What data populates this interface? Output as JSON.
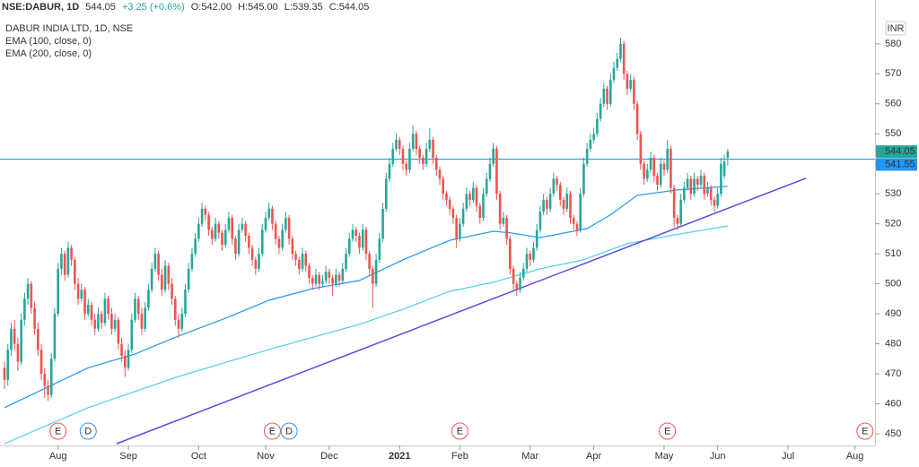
{
  "chart_data": {
    "type": "candlestick",
    "title": "DABUR INDIA LTD, 1D, NSE",
    "header": {
      "symbol": "NSE:DABUR, 1D",
      "price": "544.05",
      "change": "+3.25 (+0.6%)",
      "open": "O:542.00",
      "high": "H:545.00",
      "low": "L:539.35",
      "close": "C:544.05"
    },
    "currency": "INR",
    "xlim": [
      -1.34,
      260
    ],
    "ylim": [
      446.1,
      594.6
    ],
    "yticks": [
      450,
      460,
      470,
      480,
      490,
      500,
      510,
      520,
      530,
      540,
      550,
      560,
      570,
      580
    ],
    "xticks": [
      {
        "value": 16,
        "label": "Aug"
      },
      {
        "value": 37,
        "label": "Sep"
      },
      {
        "value": 58,
        "label": "Oct"
      },
      {
        "value": 78,
        "label": "Nov"
      },
      {
        "value": 97,
        "label": "Dec"
      },
      {
        "value": 118,
        "label": "2021"
      },
      {
        "value": 136,
        "label": "Feb"
      },
      {
        "value": 157,
        "label": "Mar"
      },
      {
        "value": 176,
        "label": "Apr"
      },
      {
        "value": 197,
        "label": "May"
      },
      {
        "value": 213,
        "label": "Jun"
      },
      {
        "value": 234,
        "label": "Jul"
      },
      {
        "value": 254,
        "label": "Aug"
      }
    ],
    "up_color": "#26a69a",
    "down_color": "#ef5350",
    "candles": [
      [
        472,
        474,
        465,
        468
      ],
      [
        468,
        480,
        466,
        478
      ],
      [
        478,
        487,
        476,
        485
      ],
      [
        485,
        488,
        478,
        480
      ],
      [
        480,
        482,
        471,
        474
      ],
      [
        474,
        490,
        473,
        488
      ],
      [
        488,
        497,
        486,
        495
      ],
      [
        495,
        502,
        493,
        500
      ],
      [
        500,
        501,
        490,
        492
      ],
      [
        492,
        494,
        483,
        485
      ],
      [
        485,
        487,
        476,
        478
      ],
      [
        478,
        480,
        468,
        470
      ],
      [
        470,
        472,
        462,
        466
      ],
      [
        466,
        468,
        461,
        463
      ],
      [
        463,
        477,
        462,
        475
      ],
      [
        475,
        492,
        474,
        490
      ],
      [
        490,
        507,
        489,
        505
      ],
      [
        505,
        512,
        503,
        510
      ],
      [
        510,
        511,
        501,
        503
      ],
      [
        503,
        514,
        502,
        512
      ],
      [
        512,
        513,
        506,
        508
      ],
      [
        508,
        509,
        498,
        500
      ],
      [
        500,
        502,
        493,
        495
      ],
      [
        495,
        500,
        494,
        498
      ],
      [
        498,
        499,
        488,
        490
      ],
      [
        490,
        495,
        489,
        493
      ],
      [
        493,
        494,
        486,
        488
      ],
      [
        488,
        490,
        483,
        485
      ],
      [
        485,
        492,
        484,
        490
      ],
      [
        490,
        491,
        485,
        487
      ],
      [
        487,
        497,
        486,
        495
      ],
      [
        495,
        496,
        488,
        490
      ],
      [
        490,
        492,
        483,
        485
      ],
      [
        485,
        490,
        484,
        488
      ],
      [
        488,
        489,
        478,
        480
      ],
      [
        480,
        482,
        474,
        476
      ],
      [
        476,
        478,
        469,
        472
      ],
      [
        472,
        480,
        471,
        478
      ],
      [
        478,
        490,
        477,
        488
      ],
      [
        488,
        497,
        487,
        495
      ],
      [
        495,
        496,
        488,
        490
      ],
      [
        490,
        492,
        483,
        485
      ],
      [
        485,
        494,
        484,
        492
      ],
      [
        492,
        500,
        491,
        498
      ],
      [
        498,
        507,
        497,
        505
      ],
      [
        505,
        512,
        504,
        510
      ],
      [
        510,
        511,
        501,
        503
      ],
      [
        503,
        505,
        496,
        498
      ],
      [
        498,
        508,
        497,
        506
      ],
      [
        506,
        507,
        498,
        500
      ],
      [
        500,
        502,
        493,
        495
      ],
      [
        495,
        496,
        486,
        488
      ],
      [
        488,
        490,
        482,
        485
      ],
      [
        485,
        492,
        484,
        490
      ],
      [
        490,
        500,
        489,
        498
      ],
      [
        498,
        507,
        497,
        505
      ],
      [
        505,
        512,
        504,
        510
      ],
      [
        510,
        517,
        509,
        515
      ],
      [
        515,
        522,
        514,
        520
      ],
      [
        520,
        527,
        519,
        525
      ],
      [
        525,
        526,
        521,
        523
      ],
      [
        523,
        524,
        516,
        518
      ],
      [
        518,
        519,
        513,
        515
      ],
      [
        515,
        522,
        514,
        520
      ],
      [
        520,
        521,
        515,
        517
      ],
      [
        517,
        518,
        511,
        513
      ],
      [
        513,
        520,
        512,
        518
      ],
      [
        518,
        524,
        517,
        522
      ],
      [
        522,
        523,
        513,
        515
      ],
      [
        515,
        516,
        508,
        510
      ],
      [
        510,
        520,
        509,
        518
      ],
      [
        518,
        522,
        517,
        520
      ],
      [
        520,
        521,
        514,
        516
      ],
      [
        516,
        517,
        510,
        512
      ],
      [
        512,
        513,
        506,
        508
      ],
      [
        508,
        509,
        503,
        505
      ],
      [
        505,
        512,
        504,
        510
      ],
      [
        510,
        520,
        509,
        518
      ],
      [
        518,
        524,
        517,
        522
      ],
      [
        522,
        527,
        521,
        525
      ],
      [
        525,
        526,
        518,
        520
      ],
      [
        520,
        521,
        513,
        515
      ],
      [
        515,
        516,
        510,
        512
      ],
      [
        512,
        520,
        511,
        518
      ],
      [
        518,
        524,
        517,
        522
      ],
      [
        522,
        523,
        513,
        515
      ],
      [
        515,
        516,
        508,
        510
      ],
      [
        510,
        511,
        506,
        508
      ],
      [
        508,
        509,
        503,
        505
      ],
      [
        505,
        512,
        504,
        510
      ],
      [
        510,
        511,
        504,
        506
      ],
      [
        506,
        507,
        500,
        502
      ],
      [
        502,
        503,
        498,
        500
      ],
      [
        500,
        505,
        499,
        503
      ],
      [
        503,
        504,
        498,
        500
      ],
      [
        500,
        503,
        499,
        501
      ],
      [
        501,
        506,
        500,
        504
      ],
      [
        504,
        505,
        500,
        502
      ],
      [
        502,
        503,
        496,
        500
      ],
      [
        500,
        505,
        499,
        503
      ],
      [
        503,
        504,
        499,
        501
      ],
      [
        501,
        507,
        500,
        505
      ],
      [
        505,
        512,
        504,
        510
      ],
      [
        510,
        517,
        509,
        515
      ],
      [
        515,
        520,
        514,
        518
      ],
      [
        518,
        519,
        514,
        516
      ],
      [
        516,
        517,
        510,
        512
      ],
      [
        512,
        520,
        511,
        518
      ],
      [
        518,
        519,
        508,
        510
      ],
      [
        510,
        511,
        503,
        505
      ],
      [
        505,
        506,
        492,
        500
      ],
      [
        500,
        510,
        499,
        508
      ],
      [
        508,
        517,
        507,
        515
      ],
      [
        515,
        527,
        514,
        525
      ],
      [
        525,
        537,
        524,
        535
      ],
      [
        535,
        542,
        534,
        540
      ],
      [
        540,
        547,
        539,
        545
      ],
      [
        545,
        550,
        544,
        548
      ],
      [
        548,
        549,
        543,
        545
      ],
      [
        545,
        546,
        538,
        540
      ],
      [
        540,
        541,
        536,
        538
      ],
      [
        538,
        547,
        537,
        545
      ],
      [
        545,
        553,
        544,
        550
      ],
      [
        550,
        551,
        543,
        545
      ],
      [
        545,
        546,
        540,
        542
      ],
      [
        542,
        543,
        538,
        540
      ],
      [
        540,
        547,
        539,
        545
      ],
      [
        545,
        552,
        544,
        548
      ],
      [
        548,
        549,
        540,
        542
      ],
      [
        542,
        543,
        536,
        538
      ],
      [
        538,
        539,
        533,
        535
      ],
      [
        535,
        536,
        528,
        530
      ],
      [
        530,
        531,
        526,
        528
      ],
      [
        528,
        529,
        523,
        525
      ],
      [
        525,
        526,
        520,
        522
      ],
      [
        522,
        523,
        512,
        515
      ],
      [
        515,
        522,
        514,
        520
      ],
      [
        520,
        527,
        519,
        525
      ],
      [
        525,
        532,
        524,
        530
      ],
      [
        530,
        531,
        526,
        528
      ],
      [
        528,
        534,
        527,
        532
      ],
      [
        532,
        533,
        524,
        526
      ],
      [
        526,
        527,
        520,
        522
      ],
      [
        522,
        532,
        521,
        530
      ],
      [
        530,
        537,
        529,
        535
      ],
      [
        535,
        542,
        534,
        540
      ],
      [
        540,
        547,
        539,
        545
      ],
      [
        545,
        546,
        528,
        530
      ],
      [
        530,
        531,
        518,
        520
      ],
      [
        520,
        524,
        519,
        522
      ],
      [
        522,
        523,
        513,
        515
      ],
      [
        515,
        516,
        503,
        505
      ],
      [
        505,
        506,
        498,
        500
      ],
      [
        500,
        501,
        496,
        498
      ],
      [
        498,
        504,
        497,
        502
      ],
      [
        502,
        507,
        501,
        505
      ],
      [
        505,
        512,
        504,
        510
      ],
      [
        510,
        511,
        506,
        508
      ],
      [
        508,
        514,
        507,
        512
      ],
      [
        512,
        520,
        511,
        518
      ],
      [
        518,
        526,
        517,
        524
      ],
      [
        524,
        530,
        523,
        528
      ],
      [
        528,
        529,
        523,
        525
      ],
      [
        525,
        532,
        524,
        530
      ],
      [
        530,
        537,
        529,
        535
      ],
      [
        535,
        536,
        531,
        533
      ],
      [
        533,
        534,
        526,
        528
      ],
      [
        528,
        529,
        523,
        525
      ],
      [
        525,
        532,
        524,
        530
      ],
      [
        530,
        531,
        520,
        522
      ],
      [
        522,
        523,
        518,
        520
      ],
      [
        520,
        521,
        516,
        518
      ],
      [
        518,
        532,
        517,
        530
      ],
      [
        530,
        542,
        529,
        540
      ],
      [
        540,
        547,
        539,
        545
      ],
      [
        545,
        550,
        544,
        548
      ],
      [
        548,
        552,
        547,
        550
      ],
      [
        550,
        557,
        549,
        555
      ],
      [
        555,
        562,
        554,
        560
      ],
      [
        560,
        567,
        559,
        565
      ],
      [
        565,
        566,
        558,
        560
      ],
      [
        560,
        570,
        559,
        568
      ],
      [
        568,
        574,
        567,
        572
      ],
      [
        572,
        577,
        571,
        575
      ],
      [
        575,
        582,
        574,
        580
      ],
      [
        580,
        581,
        568,
        570
      ],
      [
        570,
        571,
        563,
        565
      ],
      [
        565,
        570,
        564,
        568
      ],
      [
        568,
        569,
        558,
        560
      ],
      [
        560,
        561,
        548,
        550
      ],
      [
        550,
        551,
        538,
        540
      ],
      [
        540,
        541,
        533,
        535
      ],
      [
        535,
        540,
        534,
        538
      ],
      [
        538,
        544,
        537,
        542
      ],
      [
        542,
        543,
        534,
        536
      ],
      [
        536,
        537,
        531,
        533
      ],
      [
        533,
        542,
        532,
        540
      ],
      [
        540,
        541,
        536,
        538
      ],
      [
        538,
        548,
        537,
        545
      ],
      [
        545,
        546,
        530,
        532
      ],
      [
        532,
        533,
        519,
        522
      ],
      [
        522,
        523,
        518,
        520
      ],
      [
        520,
        530,
        519,
        528
      ],
      [
        528,
        534,
        527,
        532
      ],
      [
        532,
        537,
        531,
        535
      ],
      [
        535,
        536,
        528,
        530
      ],
      [
        530,
        537,
        529,
        535
      ],
      [
        535,
        536,
        531,
        533
      ],
      [
        533,
        538,
        532,
        536
      ],
      [
        536,
        537,
        528,
        530
      ],
      [
        530,
        534,
        529,
        532
      ],
      [
        532,
        533,
        526,
        528
      ],
      [
        528,
        529,
        524,
        526
      ],
      [
        526,
        532,
        525,
        530
      ],
      [
        530,
        542,
        529,
        540
      ],
      [
        536,
        543,
        535,
        540.8
      ],
      [
        542,
        545,
        539.35,
        544.05
      ]
    ],
    "series": [
      {
        "name": "EMA (100, close, 0)",
        "color": "#2196f3",
        "x": [
          0,
          25,
          39,
          52,
          66,
          79,
          92,
          106,
          119,
          133,
          146,
          151,
          160,
          174,
          181,
          189,
          201,
          216
        ],
        "values": [
          458.7,
          472,
          476.6,
          482.6,
          488.5,
          494.5,
          498.4,
          501.1,
          508,
          514.5,
          517.5,
          517,
          515.4,
          518.4,
          523,
          529.5,
          531.3,
          532.5
        ]
      },
      {
        "name": "EMA (200, close, 0)",
        "color": "#4dd0e1",
        "x": [
          0,
          25,
          52,
          79,
          106,
          119,
          133,
          146,
          160,
          173,
          186,
          200,
          216
        ],
        "values": [
          446.7,
          458.7,
          469.1,
          478.1,
          486.5,
          491.5,
          497.5,
          500.5,
          505,
          508,
          513.4,
          516.3,
          519.3
        ]
      }
    ],
    "trendline": {
      "color": "#5b4ee0",
      "x": [
        33.5,
        239.4
      ],
      "values": [
        446.7,
        535.2
      ]
    },
    "hline": {
      "value": 541.55,
      "color": "#2196f3"
    },
    "events": [
      {
        "label": "E",
        "x": 16,
        "color": "#ef5350"
      },
      {
        "label": "D",
        "x": 25,
        "color": "#2196f3"
      },
      {
        "label": "E",
        "x": 80,
        "color": "#ef5350"
      },
      {
        "label": "D",
        "x": 85,
        "color": "#2196f3"
      },
      {
        "label": "E",
        "x": 136,
        "color": "#ef5350"
      },
      {
        "label": "E",
        "x": 198,
        "color": "#ef5350"
      },
      {
        "label": "E",
        "x": 257,
        "color": "#ef5350"
      }
    ]
  }
}
